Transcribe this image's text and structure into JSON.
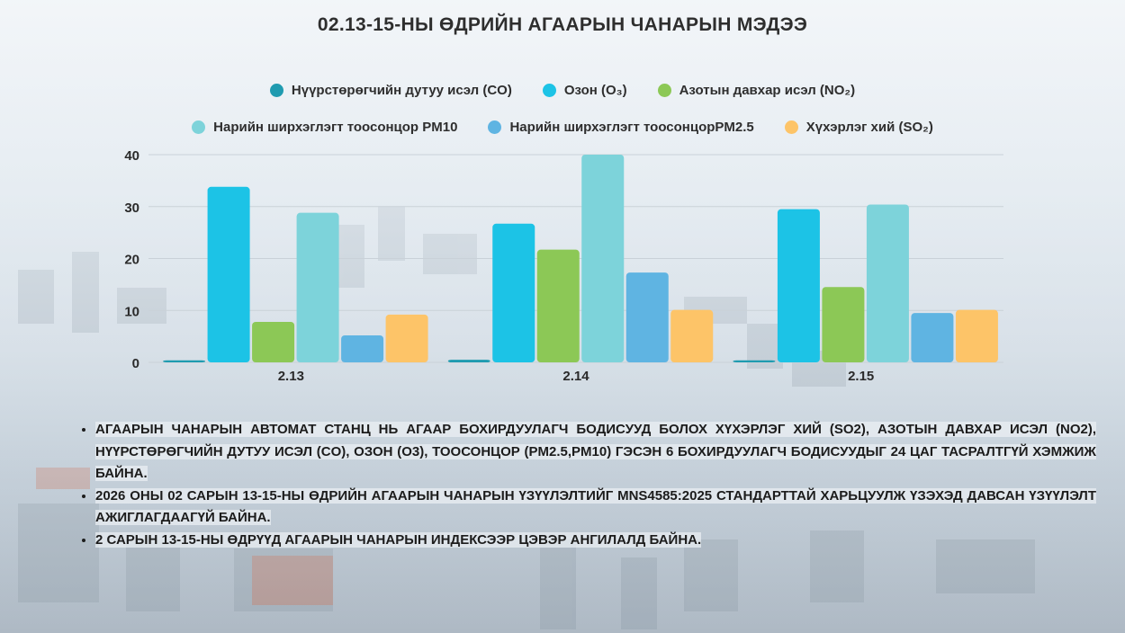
{
  "title": "02.13-15-НЫ ӨДРИЙН АГААРЫН ЧАНАРЫН МЭДЭЭ",
  "colors": {
    "co": "#1f9bb0",
    "o3": "#1cc3e6",
    "no2": "#8cc856",
    "pm10": "#7dd3da",
    "pm25": "#5fb4e2",
    "so2": "#fdc468"
  },
  "legend": {
    "row1": [
      {
        "label": "Нүүрстөрөгчийн дутуу исэл (CO)",
        "color": "#1f9bb0"
      },
      {
        "label": "Озон (O₃)",
        "color": "#1cc3e6"
      },
      {
        "label": "Азотын давхар исэл (NO₂)",
        "color": "#8cc856"
      }
    ],
    "row2": [
      {
        "label": "Нарийн ширхэглэгт тоосонцор PM10",
        "color": "#7dd3da"
      },
      {
        "label": "Нарийн ширхэглэгт тоосонцорPM2.5",
        "color": "#5fb4e2"
      },
      {
        "label": "Хүхэрлэг хий (SO₂)",
        "color": "#fdc468"
      }
    ]
  },
  "chart_data": {
    "type": "bar",
    "categories": [
      "2.13",
      "2.14",
      "2.15"
    ],
    "series": [
      {
        "name": "Нүүрстөрөгчийн дутуу исэл (CO)",
        "values": [
          0.4,
          0.5,
          0.4
        ]
      },
      {
        "name": "Озон (O₃)",
        "values": [
          33.8,
          26.7,
          29.5
        ]
      },
      {
        "name": "Азотын давхар исэл (NO₂)",
        "values": [
          7.8,
          21.7,
          14.5
        ]
      },
      {
        "name": "Нарийн ширхэглэгт тоосонцор PM10",
        "values": [
          28.8,
          40.0,
          30.4
        ]
      },
      {
        "name": "Нарийн ширхэглэгт тоосонцорPM2.5",
        "values": [
          5.2,
          17.3,
          9.5
        ]
      },
      {
        "name": "Хүхэрлэг хий (SO₂)",
        "values": [
          9.2,
          10.1,
          10.1
        ]
      }
    ],
    "y_ticks": [
      "0",
      "10",
      "20",
      "30",
      "40"
    ],
    "ylim": [
      0,
      40
    ],
    "grid": true,
    "legend_position": "top",
    "xlabel": "",
    "ylabel": ""
  },
  "bullets": [
    "АГААРЫН ЧАНАРЫН АВТОМАТ СТАНЦ НЬ АГААР БОХИРДУУЛАГЧ БОДИСУУД БОЛОХ ХҮХЭРЛЭГ ХИЙ (SO2), АЗОТЫН ДАВХАР ИСЭЛ (NO2), НҮҮРСТӨРӨГЧИЙН ДУТУУ ИСЭЛ (CO), ОЗОН (O3), ТООСОНЦОР (PM2.5,PM10) ГЭСЭН 6 БОХИРДУУЛАГЧ БОДИСУУДЫГ 24 ЦАГ ТАСРАЛТГҮЙ ХЭМЖИЖ БАЙНА.",
    "2026 ОНЫ 02 САРЫН 13-15-НЫ ӨДРИЙН АГААРЫН ЧАНАРЫН ҮЗҮҮЛЭЛТИЙГ MNS4585:2025 СТАНДАРТТАЙ ХАРЬЦУУЛЖ ҮЗЭХЭД ДАВСАН ҮЗҮҮЛЭЛТ АЖИГЛАГДААГҮЙ БАЙНА.",
    "2 САРЫН 13-15-НЫ ӨДРҮҮД АГААРЫН ЧАНАРЫН ИНДЕКСЭЭР ЦЭВЭР  АНГИЛАЛД БАЙНА."
  ]
}
